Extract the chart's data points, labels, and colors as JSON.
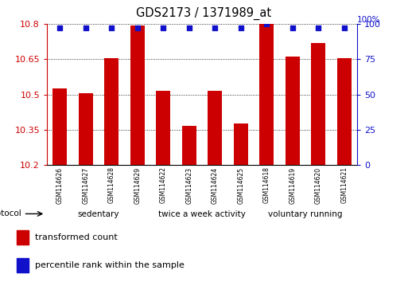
{
  "title": "GDS2173 / 1371989_at",
  "categories": [
    "GSM114626",
    "GSM114627",
    "GSM114628",
    "GSM114629",
    "GSM114622",
    "GSM114623",
    "GSM114624",
    "GSM114625",
    "GSM114618",
    "GSM114619",
    "GSM114620",
    "GSM114621"
  ],
  "bar_values": [
    10.525,
    10.505,
    10.655,
    10.795,
    10.515,
    10.365,
    10.515,
    10.375,
    10.8,
    10.66,
    10.72,
    10.655
  ],
  "percentile_values": [
    97,
    97,
    97,
    97,
    97,
    97,
    97,
    97,
    100,
    97,
    97,
    97
  ],
  "ylim_left": [
    10.2,
    10.8
  ],
  "ylim_right": [
    0,
    100
  ],
  "yticks_left": [
    10.2,
    10.35,
    10.5,
    10.65,
    10.8
  ],
  "yticks_right": [
    0,
    25,
    50,
    75,
    100
  ],
  "bar_color": "#cc0000",
  "dot_color": "#1111cc",
  "bar_bottom": 10.2,
  "groups": [
    {
      "label": "sedentary",
      "start": 0,
      "end": 4,
      "color": "#ccffcc"
    },
    {
      "label": "twice a week activity",
      "start": 4,
      "end": 8,
      "color": "#88ee88"
    },
    {
      "label": "voluntary running",
      "start": 8,
      "end": 12,
      "color": "#44dd44"
    }
  ],
  "protocol_label": "protocol",
  "legend_items": [
    {
      "color": "#cc0000",
      "label": "transformed count"
    },
    {
      "color": "#1111cc",
      "label": "percentile rank within the sample"
    }
  ],
  "background_color": "#ffffff",
  "left_axis_color": "#cc0000",
  "right_axis_color": "#1111cc",
  "tick_label_bg": "#cccccc",
  "right_top_label": "100%"
}
